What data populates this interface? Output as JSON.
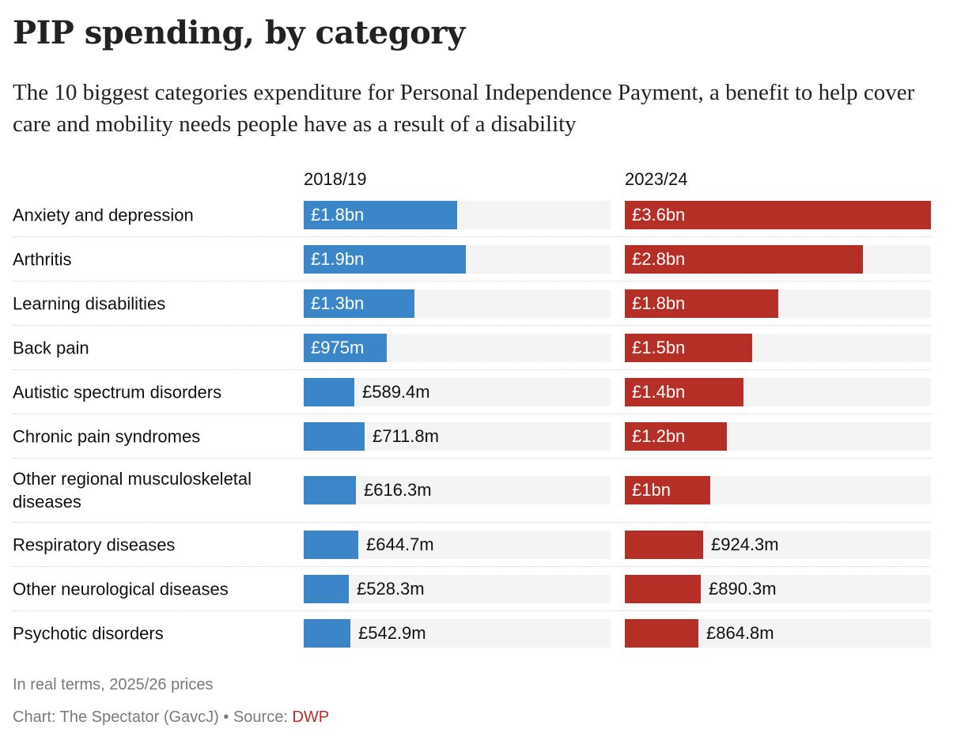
{
  "title": "PIP spending, by category",
  "subtitle": "The 10 biggest categories expenditure for Personal Independence Payment, a benefit to help cover care and mobility needs people have as a result of a disability",
  "chart_data": {
    "type": "bar",
    "orientation": "horizontal",
    "title": "PIP spending, by category",
    "subtitle": "The 10 biggest categories expenditure for Personal Independence Payment, a benefit to help cover care and mobility needs people have as a result of a disability",
    "unit": "£bn",
    "xlim": [
      0,
      3.6
    ],
    "grid": false,
    "categories": [
      "Anxiety and depression",
      "Arthritis",
      "Learning disabilities",
      "Back pain",
      "Autistic spectrum disorders",
      "Chronic pain syndromes",
      "Other regional musculoskeletal diseases",
      "Respiratory diseases",
      "Other neurological diseases",
      "Psychotic disorders"
    ],
    "series": [
      {
        "name": "2018/19",
        "color": "#3a86c8",
        "values": [
          1.8,
          1.9,
          1.3,
          0.975,
          0.5894,
          0.7118,
          0.6163,
          0.6447,
          0.5283,
          0.5429
        ],
        "labels": [
          "£1.8bn",
          "£1.9bn",
          "£1.3bn",
          "£975m",
          "£589.4m",
          "£711.8m",
          "£616.3m",
          "£644.7m",
          "£528.3m",
          "£542.9m"
        ]
      },
      {
        "name": "2023/24",
        "color": "#b52f27",
        "values": [
          3.6,
          2.8,
          1.8,
          1.5,
          1.4,
          1.2,
          1.0,
          0.9243,
          0.8903,
          0.8648
        ],
        "labels": [
          "£3.6bn",
          "£2.8bn",
          "£1.8bn",
          "£1.5bn",
          "£1.4bn",
          "£1.2bn",
          "£1bn",
          "£924.3m",
          "£890.3m",
          "£864.8m"
        ]
      }
    ],
    "notes": "In real terms, 2025/26 prices"
  },
  "footer": {
    "note": "In real terms, 2025/26 prices",
    "credit": "Chart: The Spectator (GavcJ) • Source: ",
    "source": "DWP"
  }
}
